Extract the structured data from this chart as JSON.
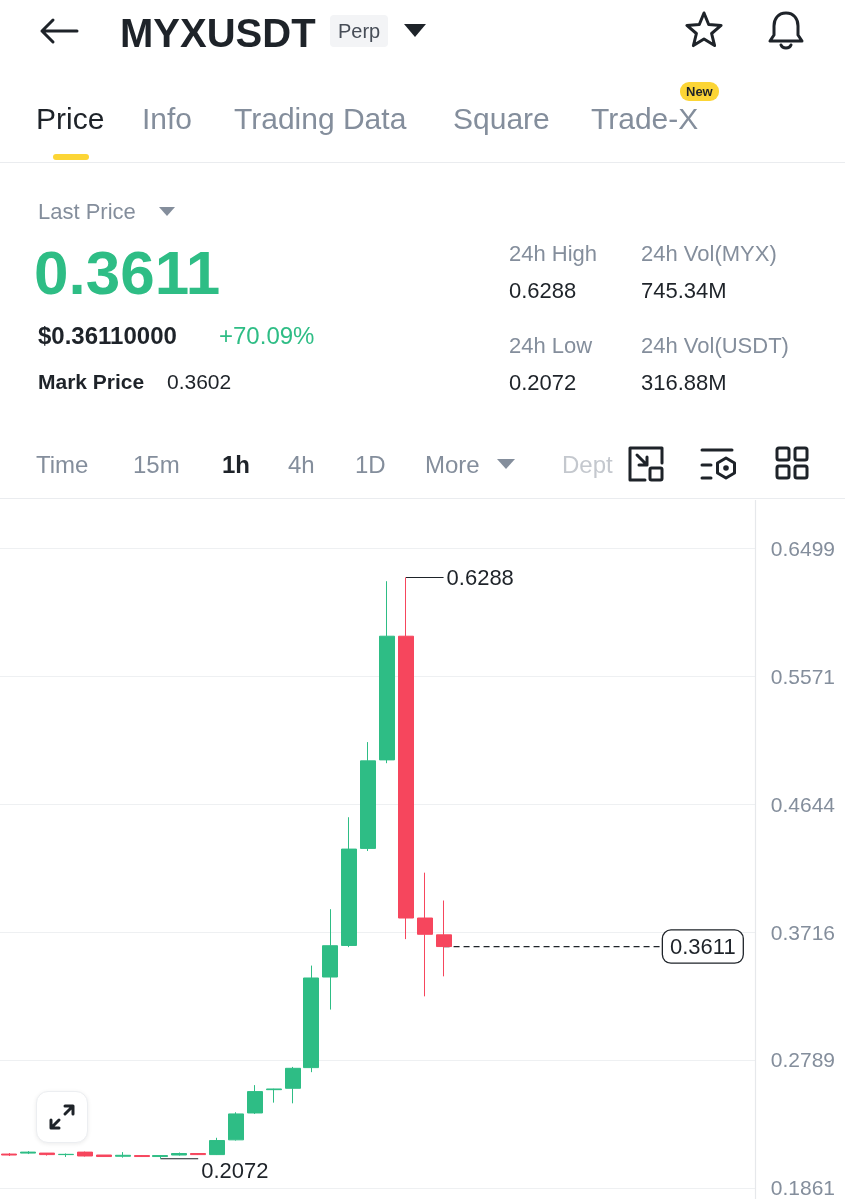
{
  "chart_data": [
    {
      "type": "other",
      "title": "MYXUSDT",
      "annotations": [
        "Perp",
        "Price",
        "Info",
        "Trading Data",
        "Square",
        "Trade-X",
        "New",
        "Last Price",
        "0.3611",
        "$0.36110000",
        "+70.09%",
        "Mark Price",
        "0.3602",
        "24h High",
        "0.6288",
        "24h Low",
        "0.2072",
        "24h Vol(MYX)",
        "745.34M",
        "24h Vol(USDT)",
        "316.88M",
        "Time",
        "15m",
        "1h",
        "4h",
        "1D",
        "More",
        "Dept"
      ]
    },
    {
      "type": "candlestick",
      "categories": [
        null,
        null,
        null,
        null,
        null,
        null,
        null,
        null,
        null,
        null,
        null,
        null,
        null,
        null,
        null,
        null,
        null,
        null,
        null,
        null,
        null,
        null,
        null,
        null,
        null,
        null,
        null,
        null,
        null,
        null,
        null,
        null,
        null,
        null,
        null,
        null,
        null,
        null,
        null,
        null
      ],
      "ohlc": [
        [
          0.2106,
          0.2113,
          0.2092,
          0.2099
        ],
        [
          0.2113,
          0.2127,
          0.2106,
          0.212
        ],
        [
          0.2113,
          0.2113,
          0.2095,
          0.2102
        ],
        [
          0.2102,
          0.211,
          0.2085,
          0.2104
        ],
        [
          0.212,
          0.2124,
          0.2088,
          0.2092
        ],
        [
          0.2099,
          0.2099,
          0.2085,
          0.2088
        ],
        [
          0.209,
          0.212,
          0.208,
          0.2097
        ],
        [
          0.2095,
          0.2099,
          0.2085,
          0.2088
        ],
        [
          0.2088,
          0.2099,
          0.2072,
          0.2095
        ],
        [
          0.2099,
          0.2117,
          0.2095,
          0.211
        ],
        [
          0.211,
          0.2113,
          0.2099,
          0.2102
        ],
        [
          0.2102,
          0.2224,
          0.2099,
          0.2204
        ],
        [
          0.2209,
          0.2409,
          0.2204,
          0.2397
        ],
        [
          0.2404,
          0.2606,
          0.2397,
          0.2559
        ],
        [
          0.2573,
          0.258,
          0.2479,
          0.2578
        ],
        [
          0.2583,
          0.2738,
          0.2474,
          0.2728
        ],
        [
          0.2733,
          0.3473,
          0.27,
          0.3383
        ],
        [
          0.339,
          0.3882,
          0.3154,
          0.3617
        ],
        [
          0.3619,
          0.4549,
          0.3607,
          0.4318
        ],
        [
          0.4323,
          0.5094,
          0.4304,
          0.4958
        ],
        [
          0.4965,
          0.6261,
          0.4941,
          0.5862
        ],
        [
          0.5862,
          0.6288,
          0.3665,
          0.3818
        ],
        [
          0.3818,
          0.4147,
          0.325,
          0.37
        ],
        [
          0.3696,
          0.3945,
          0.3395,
          0.3611
        ],
        null,
        null,
        null,
        null,
        null,
        null,
        null,
        null,
        null,
        null,
        null,
        null,
        null,
        null,
        null,
        null
      ],
      "colors": [
        "#f6465d",
        "#2ebd85",
        "#f6465d",
        "#2ebd85",
        "#f6465d",
        "#f6465d",
        "#2ebd85",
        "#f6465d",
        "#2ebd85",
        "#2ebd85",
        "#f6465d",
        "#2ebd85",
        "#2ebd85",
        "#2ebd85",
        "#2ebd85",
        "#2ebd85",
        "#2ebd85",
        "#2ebd85",
        "#2ebd85",
        "#2ebd85",
        "#2ebd85",
        "#f6465d",
        "#f6465d",
        "#f6465d",
        null,
        null,
        null,
        null,
        null,
        null,
        null,
        null,
        null,
        null,
        null,
        null,
        null,
        null,
        null,
        null
      ],
      "ylim": [
        0.178,
        0.685
      ],
      "yticks": [
        0.1861,
        0.2789,
        0.3716,
        0.4644,
        0.5571,
        0.6499
      ],
      "grid": "y",
      "tick_labels": "y",
      "ref_lines": [
        {
          "axis": "y",
          "value": 0.3611,
          "label": "0.3611",
          "line_style": "dashed",
          "color": "#1e2329"
        }
      ],
      "annotations": [
        "0.6288",
        "0.2072"
      ]
    }
  ]
}
